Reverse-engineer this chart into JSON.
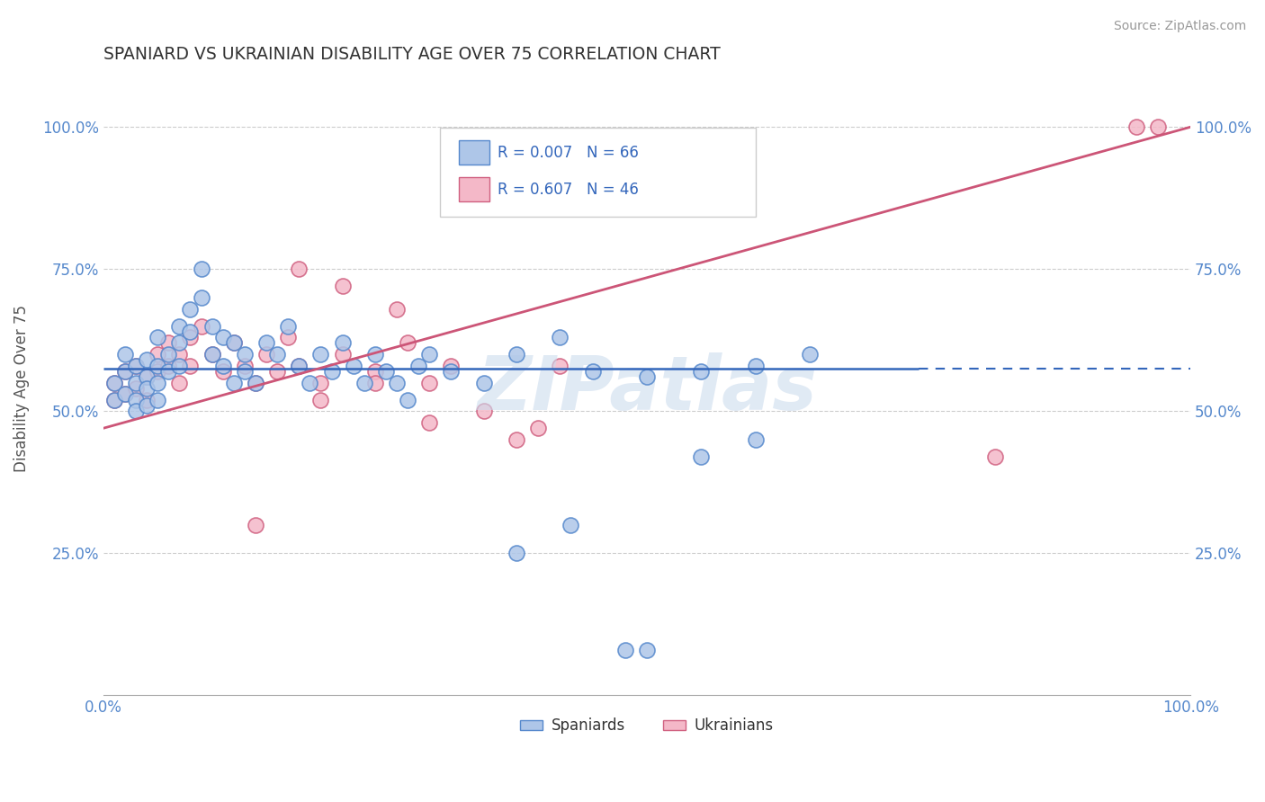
{
  "title": "SPANIARD VS UKRAINIAN DISABILITY AGE OVER 75 CORRELATION CHART",
  "source_text": "Source: ZipAtlas.com",
  "ylabel": "Disability Age Over 75",
  "legend_r_spaniards": "R = 0.007",
  "legend_n_spaniards": "N = 66",
  "legend_r_ukrainians": "R = 0.607",
  "legend_n_ukrainians": "N = 46",
  "legend_label_spaniards": "Spaniards",
  "legend_label_ukrainians": "Ukrainians",
  "xlim": [
    0.0,
    1.0
  ],
  "ylim": [
    0.0,
    1.08
  ],
  "spaniard_color": "#aec6e8",
  "ukrainian_color": "#f4b8c8",
  "spaniard_edge_color": "#5588cc",
  "ukrainian_edge_color": "#d06080",
  "trend_spaniard_color": "#3366bb",
  "trend_ukrainian_color": "#cc5577",
  "background_color": "#ffffff",
  "watermark_color": "#ccdcee",
  "flat_line_y": 0.575,
  "spaniards_x": [
    0.01,
    0.01,
    0.02,
    0.02,
    0.02,
    0.03,
    0.03,
    0.03,
    0.03,
    0.04,
    0.04,
    0.04,
    0.04,
    0.05,
    0.05,
    0.05,
    0.05,
    0.06,
    0.06,
    0.07,
    0.07,
    0.07,
    0.08,
    0.08,
    0.09,
    0.09,
    0.1,
    0.1,
    0.11,
    0.11,
    0.12,
    0.12,
    0.13,
    0.13,
    0.14,
    0.15,
    0.16,
    0.17,
    0.18,
    0.19,
    0.2,
    0.21,
    0.22,
    0.23,
    0.24,
    0.25,
    0.26,
    0.27,
    0.28,
    0.29,
    0.3,
    0.32,
    0.35,
    0.38,
    0.42,
    0.45,
    0.5,
    0.55,
    0.6,
    0.65,
    0.38,
    0.43,
    0.48,
    0.5,
    0.55,
    0.6
  ],
  "spaniards_y": [
    0.52,
    0.55,
    0.6,
    0.57,
    0.53,
    0.58,
    0.55,
    0.52,
    0.5,
    0.56,
    0.59,
    0.54,
    0.51,
    0.63,
    0.58,
    0.55,
    0.52,
    0.6,
    0.57,
    0.65,
    0.62,
    0.58,
    0.68,
    0.64,
    0.7,
    0.75,
    0.6,
    0.65,
    0.63,
    0.58,
    0.62,
    0.55,
    0.6,
    0.57,
    0.55,
    0.62,
    0.6,
    0.65,
    0.58,
    0.55,
    0.6,
    0.57,
    0.62,
    0.58,
    0.55,
    0.6,
    0.57,
    0.55,
    0.52,
    0.58,
    0.6,
    0.57,
    0.55,
    0.6,
    0.63,
    0.57,
    0.56,
    0.57,
    0.58,
    0.6,
    0.25,
    0.3,
    0.08,
    0.08,
    0.42,
    0.45
  ],
  "ukrainians_x": [
    0.01,
    0.01,
    0.02,
    0.02,
    0.03,
    0.03,
    0.04,
    0.04,
    0.05,
    0.05,
    0.06,
    0.06,
    0.07,
    0.07,
    0.08,
    0.08,
    0.09,
    0.1,
    0.11,
    0.12,
    0.13,
    0.14,
    0.15,
    0.16,
    0.17,
    0.18,
    0.2,
    0.22,
    0.25,
    0.28,
    0.3,
    0.32,
    0.18,
    0.22,
    0.27,
    0.35,
    0.4,
    0.82,
    0.95,
    0.97,
    0.14,
    0.2,
    0.25,
    0.3,
    0.38,
    0.42
  ],
  "ukrainians_y": [
    0.52,
    0.55,
    0.57,
    0.53,
    0.58,
    0.54,
    0.56,
    0.52,
    0.6,
    0.57,
    0.62,
    0.58,
    0.55,
    0.6,
    0.63,
    0.58,
    0.65,
    0.6,
    0.57,
    0.62,
    0.58,
    0.55,
    0.6,
    0.57,
    0.63,
    0.58,
    0.55,
    0.6,
    0.57,
    0.62,
    0.55,
    0.58,
    0.75,
    0.72,
    0.68,
    0.5,
    0.47,
    0.42,
    1.0,
    1.0,
    0.3,
    0.52,
    0.55,
    0.48,
    0.45,
    0.58
  ]
}
